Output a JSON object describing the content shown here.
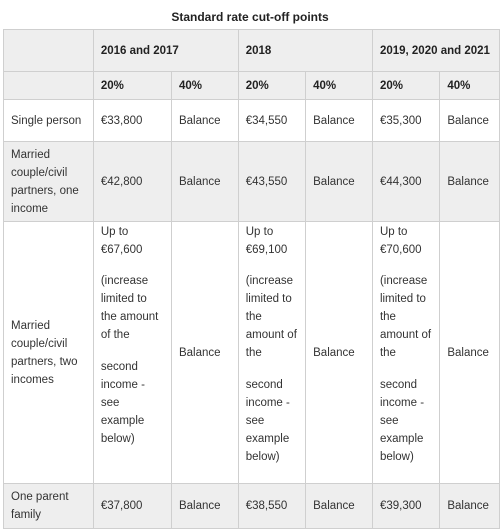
{
  "caption": "Standard rate cut-off points",
  "years": [
    "2016 and 2017",
    "2018",
    "2019, 2020 and 2021"
  ],
  "rates": [
    "20%",
    "40%"
  ],
  "rows": {
    "single": {
      "label": "Single person",
      "cells": [
        "€33,800",
        "Balance",
        "€34,550",
        "Balance",
        "€35,300",
        "Balance"
      ]
    },
    "married_one": {
      "label": "Married couple/civil partners, one income",
      "cells": [
        "€42,800",
        "Balance",
        "€43,550",
        "Balance",
        "€44,300",
        "Balance"
      ]
    },
    "married_two": {
      "label": "Married couple/civil partners, two incomes",
      "balance": "Balance",
      "cutoffs": [
        {
          "p1": "Up to €67,600",
          "p2": "(increase limited to the amount of the",
          "p3": "second income - see example below)"
        },
        {
          "p1": "Up to €69,100",
          "p2": "(increase limited to the amount of the",
          "p3": "second income - see example below)"
        },
        {
          "p1": "Up to €70,600",
          "p2": "(increase limited to the amount of the",
          "p3": "second income - see example below)"
        }
      ]
    },
    "one_parent": {
      "label": "One parent family",
      "cells": [
        "€37,800",
        "Balance",
        "€38,550",
        "Balance",
        "€39,300",
        "Balance"
      ]
    }
  }
}
